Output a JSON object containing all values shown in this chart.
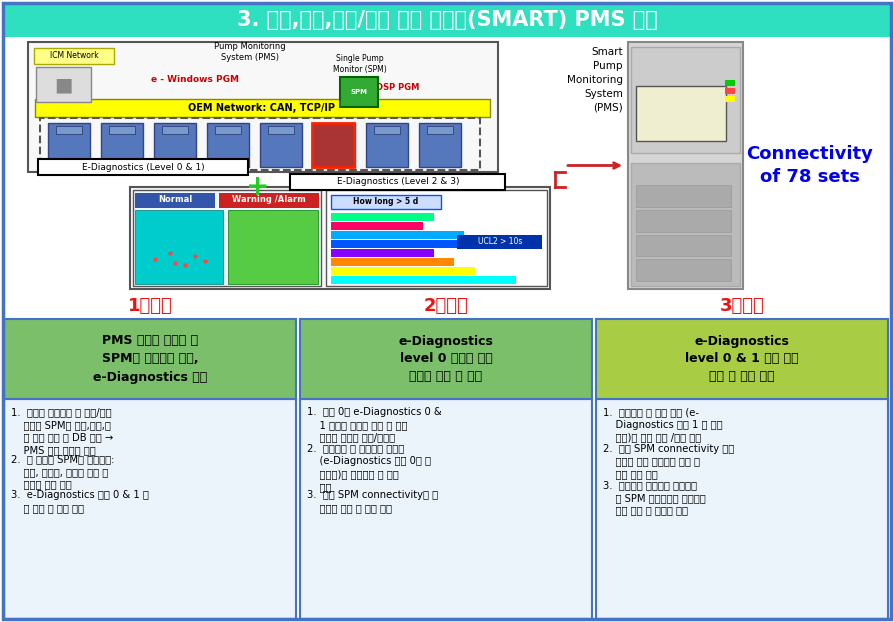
{
  "title": "3. 측정,통신,제어/적용 기능 통합형(SMART) PMS 개발",
  "title_bg": "#2EDFC0",
  "title_color": "#FFFFFF",
  "title_fontsize": 15,
  "year_labels": [
    "1차년도",
    "2차년도",
    "3차년도"
  ],
  "year_label_color": "#EE1111",
  "year_label_fontsize": 13,
  "col_header_bg1": "#7BBF6B",
  "col_header_bg2": "#7BBF6B",
  "col_header_bg3": "#A8CC44",
  "col_headers": [
    "PMS 모델의 표준와 및\nSPM의 측정능력 확장,\ne-Diagnostics 설계",
    "e-Diagnostics\nlevel 0 구연을 위안\n시작품 제작 및 실험",
    "e-Diagnostics\nlevel 0 & 1 구연 기술\n개발 및 성능 실험"
  ],
  "col_body_bg": "#EBF3FB",
  "col_border_color": "#4472C4",
  "connectivity_text": "Connectivity\nof 78 sets",
  "connectivity_color": "#0000EE",
  "smart_pms_text": "Smart\nPump\nMonitoring\nSystem\n(PMS)",
  "col1_items": [
    "1.  국내외 진공펌프 및 소자/장비\n    업체의 SPM의 측정,통신,제\n    어 능력 조사 및 DB 구축 →\n    PMS 구축 표준화 방안",
    "2.  기 개발된 SPM의 기능확장:\n    진동, 파티클, 부산물 등의 측\n    정기능 확장 연구",
    "3.  e-Diagnostics 수준 0 & 1 모\n    델 설계 및 모사 실험"
  ],
  "col2_items": [
    "1.  수준 0의 e-Diagnostics 0 &\n    1 구현용 시작품 제작 및 배기\n    시스템 측정단 조립/시운전",
    "2.  원격통신 및 현장기사 접근성\n    (e-Diagnostics 수준 0의 성\n    능인자)의 성능평가 및 개선\n    연구",
    "3.  단일 SPM connectivity의 통\n    신속도 평가 및 향상 연구"
  ],
  "col3_items": [
    "1.  신호수집 및 제어 기능 (e-\n    Diagnostics 수준 1 의 성능\n    인자)의 성능 평가 /개선 연구",
    "2.  다수 SPM connectivity 부하\n    조건에 대한 통신속도 평가 및\n    성능 향상 연구",
    "3.  진공배기 복합성능 평가장치\n    와 SPM 결과들과의 통합운영\n    기법 개발 및 신뢰성 검정"
  ],
  "outer_border_color": "#4472C4",
  "bg_color": "#FFFFFF"
}
